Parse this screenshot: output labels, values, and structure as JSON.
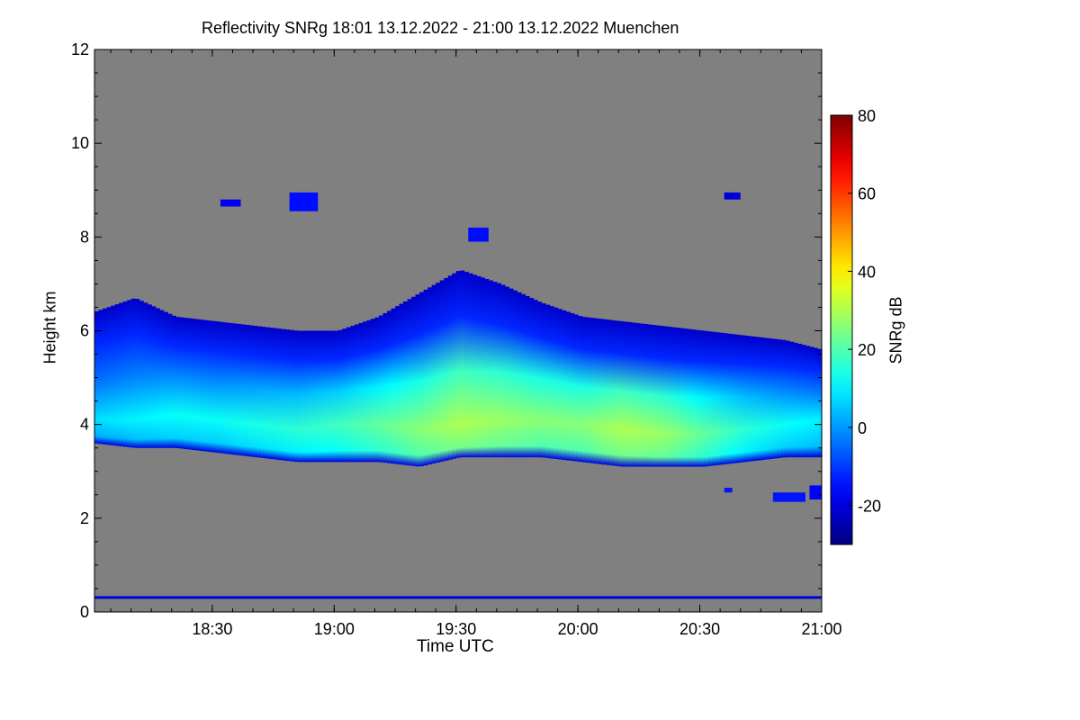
{
  "chart_data": {
    "type": "heatmap",
    "title": "Reflectivity SNRg   18:01 13.12.2022 - 21:00 13.12.2022 Muenchen",
    "xlabel": "Time UTC",
    "ylabel": "Height km",
    "x_range": [
      "18:01",
      "21:00"
    ],
    "x_ticks": [
      {
        "label": "18:30",
        "value": 29
      },
      {
        "label": "19:00",
        "value": 59
      },
      {
        "label": "19:30",
        "value": 89
      },
      {
        "label": "20:00",
        "value": 119
      },
      {
        "label": "20:30",
        "value": 149
      },
      {
        "label": "21:00",
        "value": 179
      }
    ],
    "y_range": [
      0,
      12
    ],
    "y_ticks": [
      0,
      2,
      4,
      6,
      8,
      10,
      12
    ],
    "colorbar": {
      "label": "SNRg dB",
      "range": [
        -30,
        80
      ],
      "ticks": [
        -20,
        0,
        20,
        40,
        60,
        80
      ],
      "colormap": "jet"
    },
    "background_color": "#808080",
    "cloud_layer": {
      "time_minutes": [
        0,
        10,
        20,
        30,
        40,
        50,
        60,
        70,
        80,
        90,
        100,
        110,
        120,
        130,
        140,
        150,
        160,
        170,
        179
      ],
      "top_km": [
        6.4,
        6.7,
        6.3,
        6.2,
        6.1,
        6.0,
        6.0,
        6.3,
        6.8,
        7.3,
        7.0,
        6.6,
        6.3,
        6.2,
        6.1,
        6.0,
        5.9,
        5.8,
        5.6
      ],
      "base_km": [
        3.6,
        3.5,
        3.5,
        3.4,
        3.3,
        3.2,
        3.2,
        3.2,
        3.1,
        3.3,
        3.3,
        3.3,
        3.2,
        3.1,
        3.1,
        3.1,
        3.2,
        3.3,
        3.3
      ],
      "peak_km": [
        4.1,
        4.1,
        4.2,
        4.1,
        4.0,
        3.9,
        4.0,
        4.0,
        3.9,
        4.0,
        4.1,
        4.1,
        4.0,
        3.9,
        3.8,
        3.8,
        3.9,
        4.0,
        4.1
      ],
      "peak_snr_db": [
        8,
        10,
        12,
        12,
        14,
        16,
        18,
        22,
        26,
        30,
        28,
        26,
        26,
        30,
        28,
        22,
        16,
        12,
        10
      ]
    },
    "patches": [
      {
        "t0": 48,
        "t1": 55,
        "h0": 8.55,
        "h1": 8.95,
        "snr_db": -15
      },
      {
        "t0": 31,
        "t1": 36,
        "h0": 8.65,
        "h1": 8.8,
        "snr_db": -18
      },
      {
        "t0": 92,
        "t1": 97,
        "h0": 7.9,
        "h1": 8.2,
        "snr_db": -15
      },
      {
        "t0": 155,
        "t1": 159,
        "h0": 8.8,
        "h1": 8.95,
        "snr_db": -20
      },
      {
        "t0": 167,
        "t1": 175,
        "h0": 2.35,
        "h1": 2.55,
        "snr_db": -14
      },
      {
        "t0": 155,
        "t1": 157,
        "h0": 2.55,
        "h1": 2.65,
        "snr_db": -14
      },
      {
        "t0": 176,
        "t1": 179,
        "h0": 2.4,
        "h1": 2.7,
        "snr_db": -16
      }
    ],
    "ground_line_km": 0.3
  }
}
